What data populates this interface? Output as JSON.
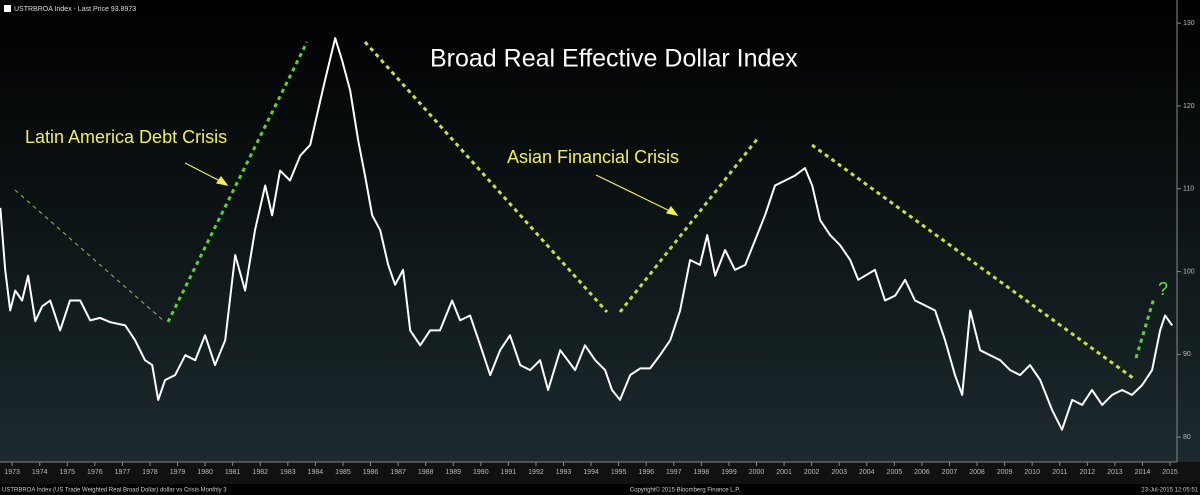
{
  "header": "USTRBROA Index - Last Price 93.8973",
  "footer": {
    "left": "USTRBROA Index (US Trade Weighted Real Broad Dollar) dollar vs Crisis  Monthly 3",
    "center": "Copyright© 2015 Bloomberg Finance L.P.",
    "right": "23-Jul-2015 12:05:51"
  },
  "chart_data": {
    "type": "line",
    "title": "Broad Real Effective Dollar Index",
    "annotations": [
      "Latin America Debt Crisis",
      "Asian Financial Crisis",
      "?"
    ],
    "color": "#ffffff",
    "x": [
      1972.57,
      1972.75,
      1972.93,
      1973.11,
      1973.36,
      1973.58,
      1973.84,
      1974.09,
      1974.38,
      1974.74,
      1975.1,
      1975.47,
      1975.83,
      1976.19,
      1976.55,
      1977.1,
      1977.46,
      1977.82,
      1978.08,
      1978.3,
      1978.55,
      1978.91,
      1979.28,
      1979.64,
      1980.0,
      1980.36,
      1980.73,
      1981.09,
      1981.45,
      1981.81,
      1982.18,
      1982.43,
      1982.72,
      1983.08,
      1983.45,
      1983.81,
      1984.1,
      1984.35,
      1984.72,
      1984.97,
      1985.26,
      1985.55,
      1985.8,
      1986.06,
      1986.35,
      1986.64,
      1986.89,
      1987.18,
      1987.44,
      1987.8,
      1988.16,
      1988.52,
      1988.96,
      1989.25,
      1989.61,
      1989.98,
      1990.34,
      1990.7,
      1991.06,
      1991.43,
      1991.79,
      1992.15,
      1992.44,
      1992.88,
      1993.42,
      1993.78,
      1994.15,
      1994.51,
      1994.76,
      1995.05,
      1995.42,
      1995.78,
      1996.14,
      1996.5,
      1996.87,
      1997.23,
      1997.59,
      1997.95,
      1998.21,
      1998.5,
      1998.86,
      1999.22,
      1999.59,
      1999.95,
      2000.31,
      2000.67,
      2001.04,
      2001.4,
      2001.76,
      2002.02,
      2002.31,
      2002.67,
      2003.03,
      2003.4,
      2003.69,
      2003.94,
      2004.3,
      2004.66,
      2005.03,
      2005.39,
      2005.75,
      2006.12,
      2006.48,
      2006.84,
      2007.2,
      2007.46,
      2007.75,
      2008.11,
      2008.47,
      2008.84,
      2009.2,
      2009.56,
      2009.92,
      2010.29,
      2010.72,
      2011.08,
      2011.45,
      2011.81,
      2012.17,
      2012.54,
      2012.9,
      2013.26,
      2013.62,
      2013.99,
      2014.35,
      2014.64,
      2014.82,
      2015.08
    ],
    "values": [
      107.7,
      100.2,
      95.3,
      97.7,
      96.5,
      99.5,
      94.0,
      95.8,
      96.5,
      92.9,
      96.5,
      96.5,
      94.1,
      94.4,
      93.9,
      93.5,
      91.7,
      89.3,
      88.7,
      84.5,
      86.9,
      87.5,
      89.9,
      89.3,
      92.3,
      88.7,
      91.7,
      102.0,
      97.7,
      105.0,
      110.4,
      106.8,
      112.2,
      111.0,
      114.0,
      115.3,
      119.5,
      123.1,
      128.2,
      125.5,
      121.9,
      115.9,
      111.6,
      106.8,
      105.0,
      100.8,
      98.4,
      100.2,
      92.9,
      91.1,
      92.9,
      92.9,
      96.5,
      94.1,
      94.7,
      91.1,
      87.5,
      90.5,
      92.3,
      88.7,
      88.1,
      89.3,
      85.7,
      90.5,
      88.1,
      91.1,
      89.3,
      88.1,
      85.7,
      84.5,
      87.5,
      88.3,
      88.3,
      89.9,
      91.7,
      95.3,
      101.4,
      100.8,
      104.4,
      99.5,
      102.6,
      100.2,
      100.8,
      103.8,
      106.8,
      110.4,
      111.0,
      111.6,
      112.5,
      110.4,
      106.2,
      104.4,
      103.2,
      101.4,
      99.0,
      99.5,
      100.2,
      96.5,
      97.1,
      99.0,
      96.5,
      95.9,
      95.3,
      91.7,
      87.5,
      85.1,
      95.3,
      90.5,
      89.9,
      89.3,
      88.1,
      87.5,
      88.7,
      86.9,
      83.3,
      80.9,
      84.5,
      83.9,
      85.7,
      83.9,
      85.1,
      85.7,
      85.1,
      86.3,
      88.1,
      92.9,
      94.7,
      93.5
    ],
    "xlim": [
      1972.56,
      2015.18
    ],
    "xticks": [
      1973,
      1974,
      1975,
      1976,
      1977,
      1978,
      1979,
      1980,
      1981,
      1982,
      1983,
      1984,
      1985,
      1986,
      1987,
      1988,
      1989,
      1990,
      1991,
      1992,
      1993,
      1994,
      1995,
      1996,
      1997,
      1998,
      1999,
      2000,
      2001,
      2002,
      2003,
      2004,
      2005,
      2006,
      2007,
      2008,
      2009,
      2010,
      2011,
      2012,
      2013,
      2014,
      2015
    ],
    "ylim": [
      77,
      132.8
    ],
    "yticks": [
      80,
      90,
      100,
      110,
      120,
      130
    ],
    "grid": false
  }
}
